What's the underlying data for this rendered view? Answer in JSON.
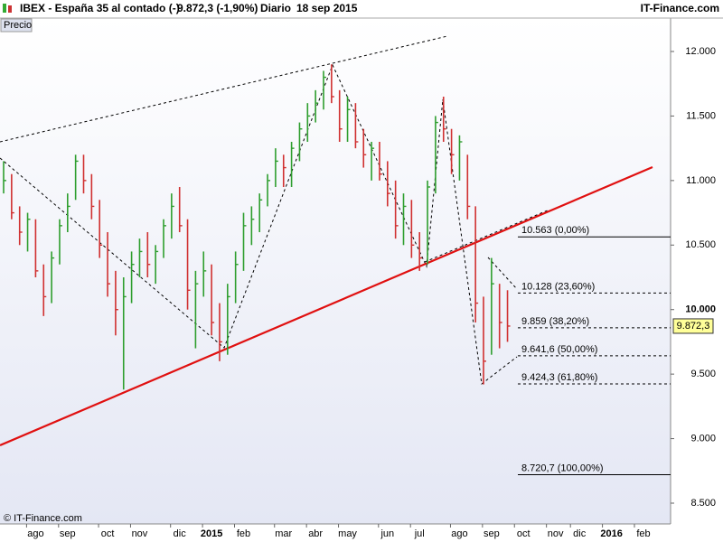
{
  "chart_data": {
    "type": "ohlc",
    "title": "IBEX - España 35 al contado (-)",
    "last": "9.872,3 (-1,90%)",
    "period": "Diario",
    "date": "18 sep 2015",
    "brand": "IT-Finance.com",
    "panel_label": "Precio",
    "copyright": "© IT-Finance.com",
    "last_price": {
      "value": 9872.3,
      "label": "9.872,3"
    },
    "ylim": [
      8339,
      12259
    ],
    "yticks": [
      {
        "value": 12000,
        "label": "12.000"
      },
      {
        "value": 11500,
        "label": "11.500"
      },
      {
        "value": 11000,
        "label": "11.000"
      },
      {
        "value": 10500,
        "label": "10.500"
      },
      {
        "value": 10000,
        "label": "10.000"
      },
      {
        "value": 9500,
        "label": "9.500"
      },
      {
        "value": 9000,
        "label": "9.000"
      },
      {
        "value": 8500,
        "label": "8.500"
      }
    ],
    "categories": [
      null,
      null,
      null,
      null,
      "ago",
      null,
      null,
      null,
      "sep",
      null,
      null,
      null,
      null,
      "oct",
      null,
      null,
      null,
      "nov",
      null,
      null,
      null,
      null,
      "dic",
      null,
      null,
      null,
      "2015",
      null,
      null,
      null,
      "feb",
      null,
      null,
      null,
      null,
      "mar",
      null,
      null,
      null,
      "abr",
      null,
      null,
      null,
      "may",
      null,
      null,
      null,
      null,
      "jun",
      null,
      null,
      null,
      "jul",
      null,
      null,
      null,
      null,
      "ago",
      null,
      null,
      null,
      "sep",
      null,
      null,
      null,
      "oct",
      null,
      null,
      null,
      "nov",
      null,
      null,
      "dic",
      null,
      null,
      null,
      "2016",
      null,
      null,
      null,
      "feb",
      null,
      null,
      null
    ],
    "high": [
      11150,
      11050,
      10800,
      10750,
      10700,
      10350,
      10450,
      10700,
      10900,
      11200,
      11200,
      11050,
      10850,
      10600,
      10300,
      10250,
      10450,
      10550,
      10600,
      10500,
      10700,
      10900,
      10950,
      10700,
      10300,
      10450,
      10350,
      10050,
      10200,
      10450,
      10750,
      10800,
      10900,
      11050,
      11250,
      11200,
      11300,
      11450,
      11600,
      11700,
      11850,
      11900,
      11700,
      11650,
      11600,
      11400,
      11300,
      11300,
      11150,
      11000,
      10900,
      10850,
      10600,
      11000,
      11500,
      11650,
      11400,
      11350,
      11200,
      10800,
      10100,
      10400,
      10200,
      10150,
      null,
      null,
      null,
      null,
      null,
      null,
      null,
      null,
      null,
      null,
      null,
      null,
      null,
      null,
      null,
      null,
      null,
      null,
      null,
      null
    ],
    "low": [
      10900,
      10700,
      10500,
      10450,
      10250,
      9950,
      10050,
      10350,
      10600,
      10850,
      10900,
      10700,
      10400,
      10100,
      9800,
      9380,
      10050,
      10250,
      10250,
      10200,
      10400,
      10550,
      10600,
      10000,
      9700,
      10100,
      9800,
      9600,
      9650,
      10050,
      10300,
      10500,
      10600,
      10800,
      10950,
      10950,
      10950,
      11150,
      11300,
      11450,
      11550,
      11600,
      11300,
      11300,
      11250,
      11100,
      11000,
      11000,
      10800,
      10550,
      10500,
      10400,
      10300,
      10350,
      10900,
      11300,
      11050,
      11000,
      10700,
      9900,
      9420,
      9650,
      9700,
      9750,
      null,
      null,
      null,
      null,
      null,
      null,
      null,
      null,
      null,
      null,
      null,
      null,
      null,
      null,
      null,
      null,
      null,
      null,
      null,
      null
    ],
    "close": [
      11000,
      10750,
      10600,
      10700,
      10300,
      10100,
      10400,
      10650,
      10800,
      11150,
      11000,
      10800,
      10500,
      10200,
      10000,
      10100,
      10350,
      10450,
      10350,
      10450,
      10650,
      10800,
      10650,
      10150,
      10200,
      10300,
      9900,
      9750,
      10100,
      10350,
      10650,
      10700,
      10850,
      11000,
      11150,
      11100,
      11250,
      11400,
      11500,
      11600,
      11800,
      11650,
      11400,
      11550,
      11300,
      11200,
      11250,
      11050,
      10900,
      10650,
      10800,
      10500,
      10400,
      10950,
      11450,
      11400,
      11200,
      11300,
      10800,
      10050,
      9600,
      10200,
      9900,
      9872.3,
      null,
      null,
      null,
      null,
      null,
      null,
      null,
      null,
      null,
      null,
      null,
      null,
      null,
      null,
      null,
      null,
      null,
      null,
      null,
      null
    ],
    "up_color": "#2e9e2e",
    "down_color": "#d03030",
    "fib_levels": [
      {
        "value": 10563,
        "label": "10.563 (0,00%)"
      },
      {
        "value": 10128,
        "label": "10.128 (23,60%)"
      },
      {
        "value": 9859,
        "label": "9.859 (38,20%)"
      },
      {
        "value": 9641.6,
        "label": "9.641,6 (50,00%)"
      },
      {
        "value": 9424.3,
        "label": "9.424,3 (61,80%)"
      },
      {
        "value": 8720.7,
        "label": "8.720,7 (100,00%)"
      }
    ]
  }
}
